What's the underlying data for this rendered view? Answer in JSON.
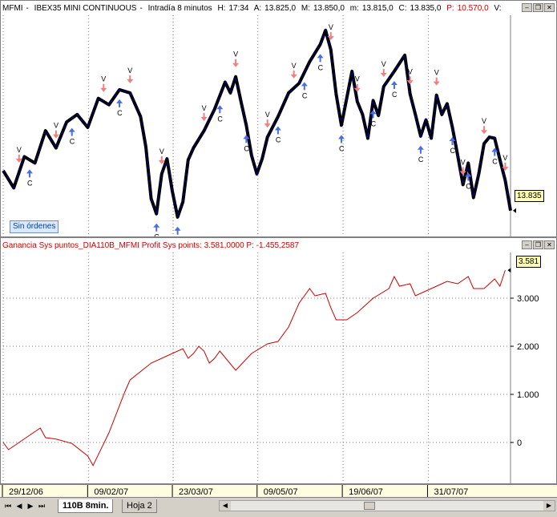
{
  "header1": {
    "symbol": "MFMI",
    "name": "IBEX35 MINI CONTINUOUS",
    "interval": "Intradía 8 minutos",
    "h_label": "H:",
    "h_value": "17:34",
    "a_label": "A:",
    "a_value": "13.825,0",
    "m_label": "M:",
    "m_value": "13.850,0",
    "mm_label": "m:",
    "mm_value": "13.815,0",
    "c_label": "C:",
    "c_value": "13.835,0",
    "p_label": "P:",
    "p_value": "10.570,0",
    "v_label": "V:"
  },
  "header2": {
    "text": "Ganancia Sys puntos_DIA110B_MFMI  Profit Sys points: 3.581,0000  P: -1.455,2587"
  },
  "price_last": "13.835",
  "equity_last": "3.581",
  "orders_label": "Sin órdenes",
  "tabs": [
    {
      "label": "110B  8min."
    },
    {
      "label": "Hoja 2"
    }
  ],
  "colors": {
    "price": "#000000",
    "price_up": "#0000a0",
    "buy_arrow": "#4a6ee0",
    "sell_arrow": "#f08080",
    "trendline": "#0000ff",
    "equity": "#cc0000",
    "header2_text": "#cc0000",
    "p_value": "#cc0000"
  },
  "chart_data": [
    {
      "type": "line",
      "series": [
        {
          "name": "MFMI",
          "points": [
            [
              0,
              14.21
            ],
            [
              2,
              14.05
            ],
            [
              4,
              14.34
            ],
            [
              6,
              14.28
            ],
            [
              8,
              14.58
            ],
            [
              10,
              14.42
            ],
            [
              12,
              14.66
            ],
            [
              14,
              14.73
            ],
            [
              16,
              14.61
            ],
            [
              18,
              14.88
            ],
            [
              20,
              14.82
            ],
            [
              22,
              14.96
            ],
            [
              24,
              14.93
            ],
            [
              26,
              14.71
            ],
            [
              27,
              14.43
            ],
            [
              28,
              13.95
            ],
            [
              29,
              13.81
            ],
            [
              30,
              14.18
            ],
            [
              31,
              14.32
            ],
            [
              32,
              14.02
            ],
            [
              33,
              13.78
            ],
            [
              34,
              13.92
            ],
            [
              35,
              14.31
            ],
            [
              36,
              14.42
            ],
            [
              38,
              14.58
            ],
            [
              40,
              14.78
            ],
            [
              42,
              15.03
            ],
            [
              43,
              14.93
            ],
            [
              44,
              15.08
            ],
            [
              45,
              14.85
            ],
            [
              46,
              14.63
            ],
            [
              47,
              14.35
            ],
            [
              48,
              14.18
            ],
            [
              49,
              14.32
            ],
            [
              50,
              14.52
            ],
            [
              52,
              14.71
            ],
            [
              54,
              14.93
            ],
            [
              56,
              15.02
            ],
            [
              58,
              15.22
            ],
            [
              60,
              15.38
            ],
            [
              61,
              15.51
            ],
            [
              62,
              15.33
            ],
            [
              63,
              14.92
            ],
            [
              64,
              14.63
            ],
            [
              65,
              14.88
            ],
            [
              66,
              15.13
            ],
            [
              67,
              14.85
            ],
            [
              68,
              14.73
            ],
            [
              69,
              14.51
            ],
            [
              70,
              14.86
            ],
            [
              71,
              14.72
            ],
            [
              72,
              14.99
            ],
            [
              74,
              15.13
            ],
            [
              76,
              15.28
            ],
            [
              77,
              14.92
            ],
            [
              78,
              14.73
            ],
            [
              79,
              14.53
            ],
            [
              80,
              14.68
            ],
            [
              81,
              14.51
            ],
            [
              82,
              14.91
            ],
            [
              83,
              14.73
            ],
            [
              84,
              14.83
            ],
            [
              85,
              14.61
            ],
            [
              86,
              14.35
            ],
            [
              87,
              14.08
            ],
            [
              88,
              14.28
            ],
            [
              89,
              13.96
            ],
            [
              90,
              14.18
            ],
            [
              91,
              14.46
            ],
            [
              92,
              14.52
            ],
            [
              93,
              14.51
            ],
            [
              94,
              14.31
            ],
            [
              95,
              14.12
            ],
            [
              96,
              13.84
            ]
          ]
        }
      ],
      "x_range": [
        0,
        96
      ],
      "y_ticks": [
        "14.000",
        "14.500",
        "15.000",
        "15.500"
      ],
      "ylim": [
        13.6,
        15.65
      ],
      "x_ticks": [
        "29/12/06",
        "09/02/07",
        "23/03/07",
        "09/05/07",
        "19/06/07",
        "31/07/07"
      ],
      "markers": {
        "buy": [
          5,
          13,
          22,
          29,
          33,
          41,
          46,
          52,
          57,
          60,
          64,
          70,
          74,
          79,
          85,
          88,
          93
        ],
        "sell": [
          3,
          10,
          19,
          24,
          30,
          38,
          44,
          50,
          55,
          62,
          67,
          72,
          77,
          82,
          87,
          91,
          95
        ]
      }
    },
    {
      "type": "line",
      "series": [
        {
          "name": "Ganancia Sys puntos_DIA110B_MFMI",
          "points": [
            [
              0,
              0
            ],
            [
              1,
              -150
            ],
            [
              3,
              0
            ],
            [
              5,
              150
            ],
            [
              7,
              300
            ],
            [
              8,
              100
            ],
            [
              10,
              70
            ],
            [
              13,
              -20
            ],
            [
              16,
              -280
            ],
            [
              17,
              -480
            ],
            [
              20,
              200
            ],
            [
              23,
              1050
            ],
            [
              24,
              1300
            ],
            [
              28,
              1650
            ],
            [
              32,
              1850
            ],
            [
              34,
              1950
            ],
            [
              35,
              1750
            ],
            [
              36,
              1850
            ],
            [
              37,
              2000
            ],
            [
              38,
              1900
            ],
            [
              39,
              1650
            ],
            [
              40,
              1750
            ],
            [
              41,
              1900
            ],
            [
              44,
              1500
            ],
            [
              47,
              1850
            ],
            [
              50,
              2050
            ],
            [
              52,
              2100
            ],
            [
              54,
              2400
            ],
            [
              56,
              2900
            ],
            [
              58,
              3200
            ],
            [
              59,
              3050
            ],
            [
              61,
              3100
            ],
            [
              62,
              2800
            ],
            [
              63,
              2550
            ],
            [
              65,
              2550
            ],
            [
              67,
              2700
            ],
            [
              70,
              3000
            ],
            [
              73,
              3200
            ],
            [
              74,
              3450
            ],
            [
              75,
              3250
            ],
            [
              77,
              3300
            ],
            [
              78,
              3050
            ],
            [
              80,
              3150
            ],
            [
              82,
              3250
            ],
            [
              84,
              3350
            ],
            [
              86,
              3300
            ],
            [
              88,
              3450
            ],
            [
              89,
              3200
            ],
            [
              91,
              3200
            ],
            [
              93,
              3400
            ],
            [
              94,
              3250
            ],
            [
              95,
              3581
            ]
          ]
        }
      ],
      "x_range": [
        0,
        96
      ],
      "y_ticks": [
        "0",
        "1.000",
        "2.000",
        "3.000"
      ],
      "ylim": [
        -850,
        3950
      ]
    }
  ]
}
